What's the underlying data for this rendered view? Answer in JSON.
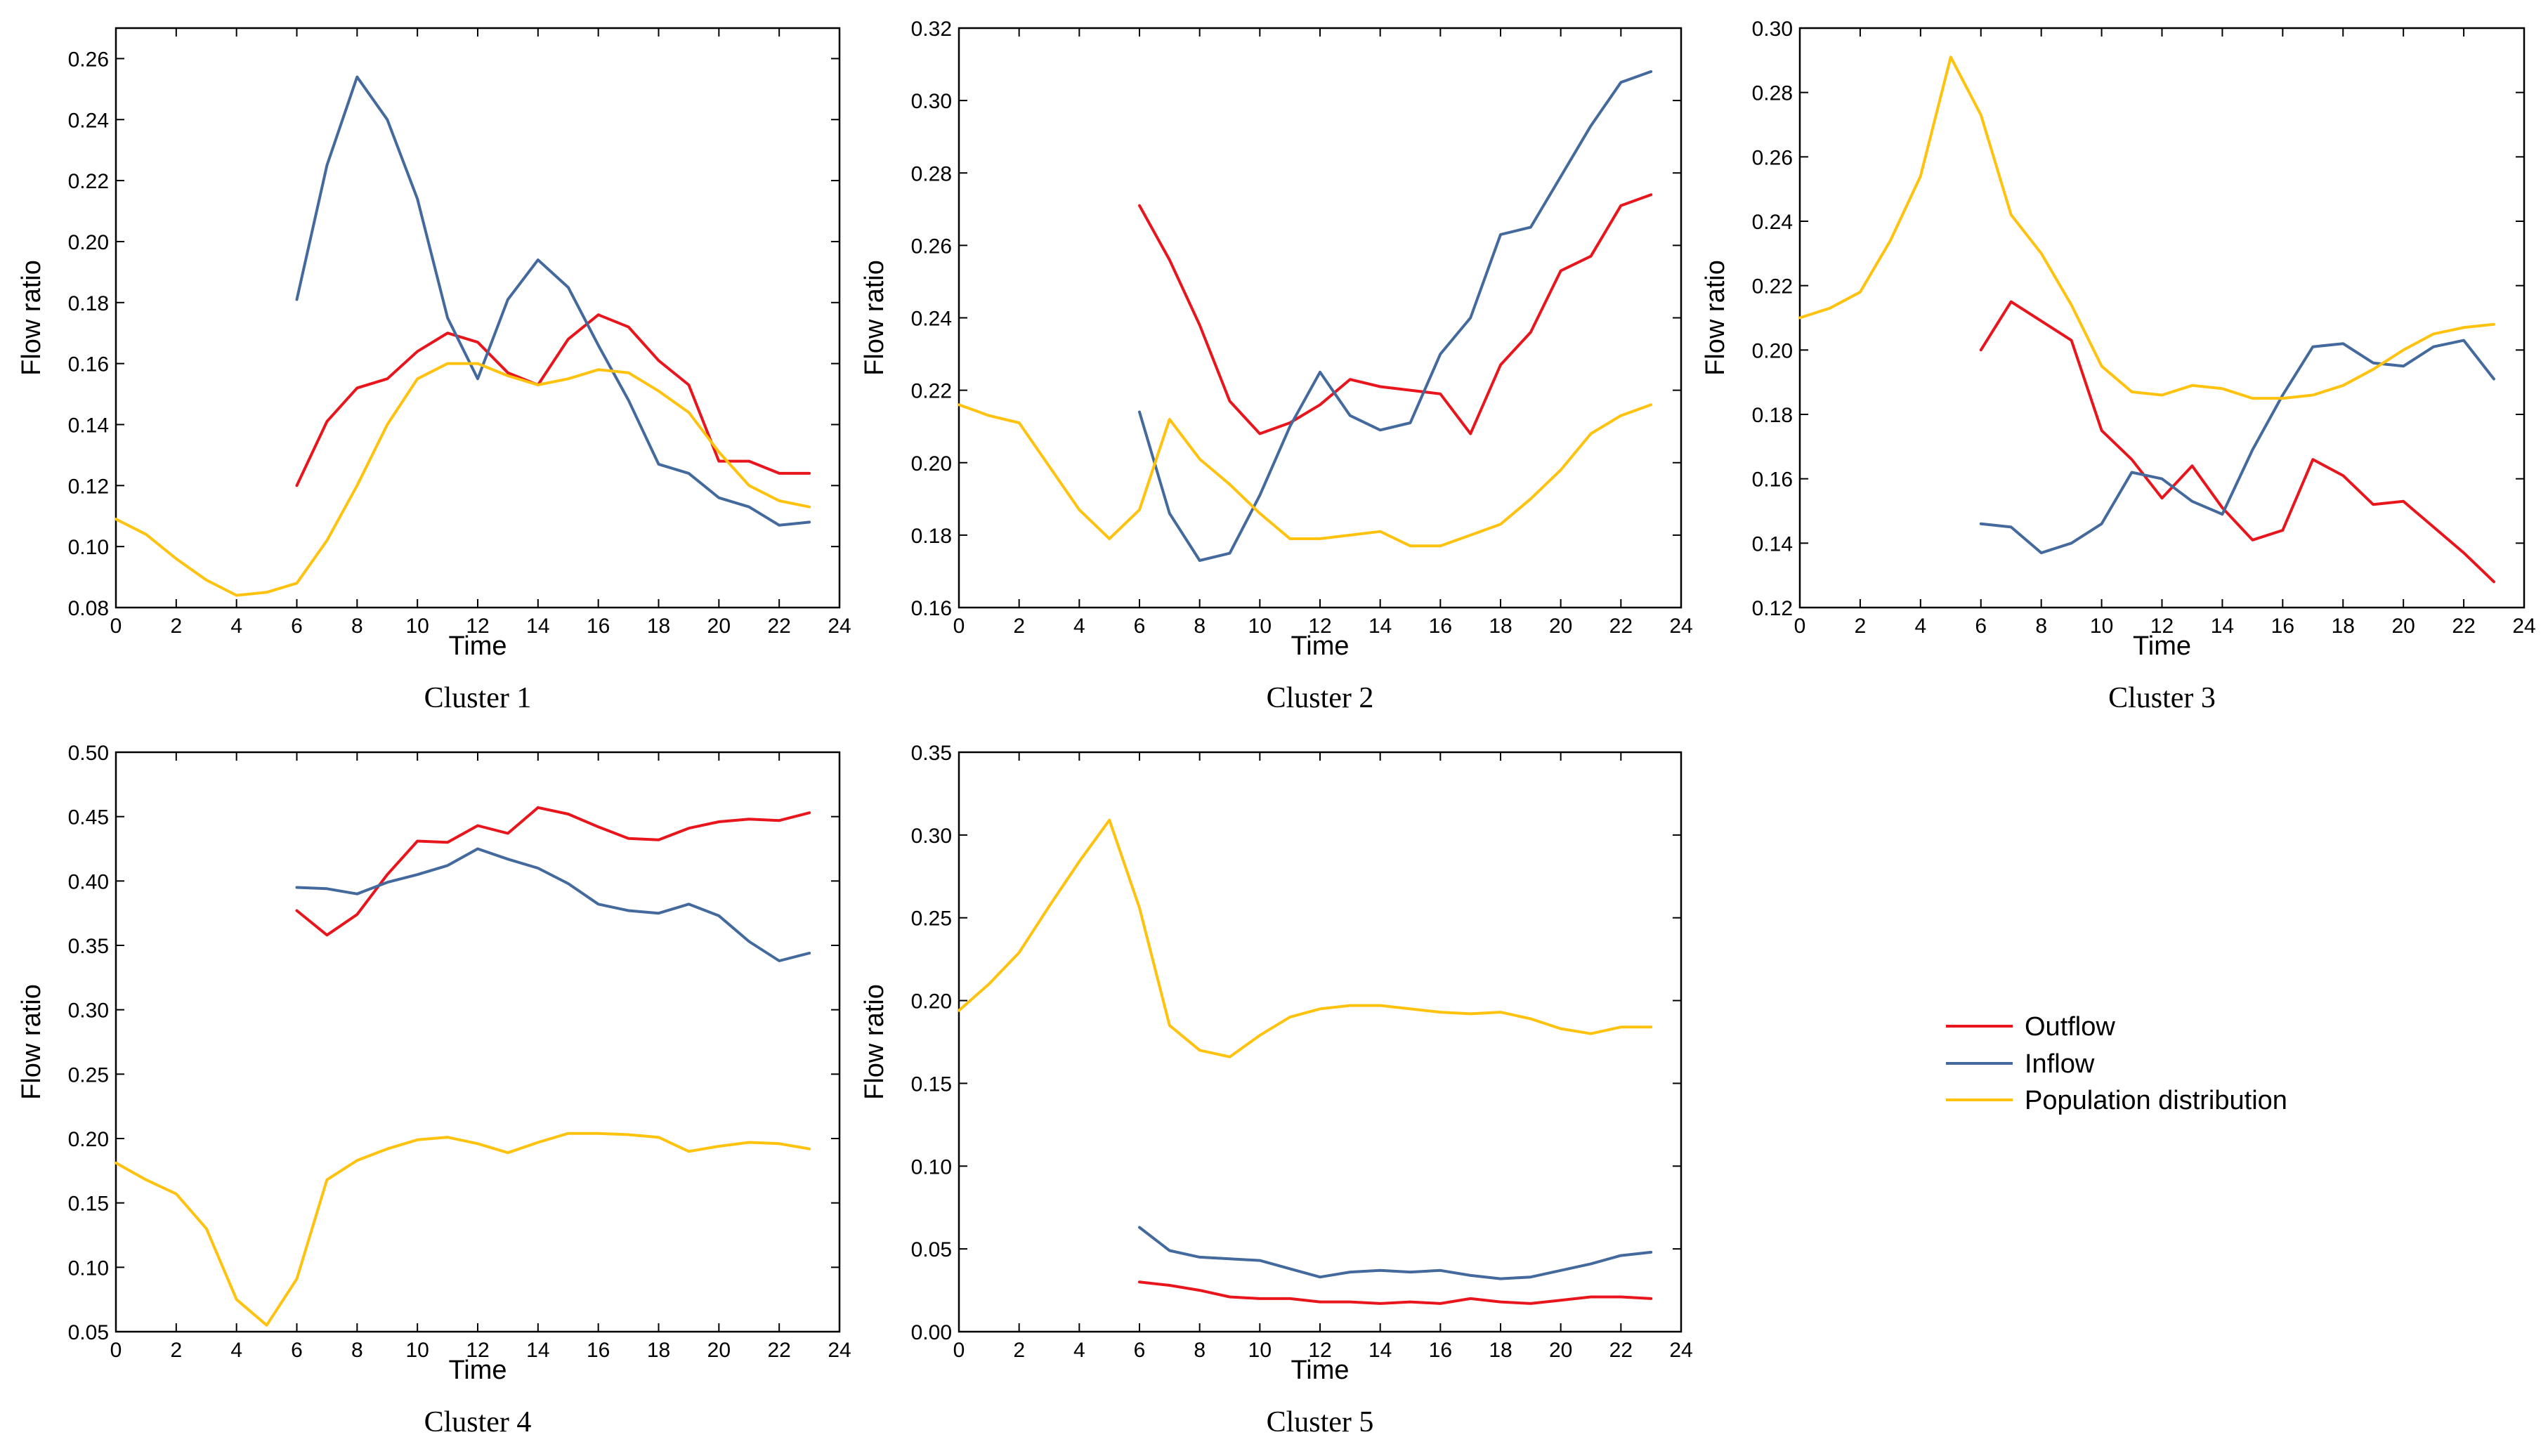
{
  "figure": {
    "legend": [
      {
        "label": "Outflow",
        "color": "#e8161c"
      },
      {
        "label": "Inflow",
        "color": "#44699d"
      },
      {
        "label": "Population distribution",
        "color": "#ffc20e"
      }
    ]
  },
  "chart_data": [
    {
      "type": "line",
      "title": "Cluster 1",
      "xlabel": "Time",
      "ylabel": "Flow ratio",
      "xlim": [
        0,
        24
      ],
      "ylim": [
        0.08,
        0.27
      ],
      "xticks": [
        0,
        2,
        4,
        6,
        8,
        10,
        12,
        14,
        16,
        18,
        20,
        22,
        24
      ],
      "yticks": [
        0.08,
        0.1,
        0.12,
        0.14,
        0.16,
        0.18,
        0.2,
        0.22,
        0.24,
        0.26
      ],
      "yfmt": 2,
      "series": [
        {
          "name": "Outflow",
          "x": [
            6,
            7,
            8,
            9,
            10,
            11,
            12,
            13,
            14,
            15,
            16,
            17,
            18,
            19,
            20,
            21,
            22,
            23
          ],
          "values": [
            0.12,
            0.141,
            0.152,
            0.155,
            0.164,
            0.17,
            0.167,
            0.157,
            0.153,
            0.168,
            0.176,
            0.172,
            0.161,
            0.153,
            0.128,
            0.128,
            0.124,
            0.124
          ]
        },
        {
          "name": "Inflow",
          "x": [
            6,
            7,
            8,
            9,
            10,
            11,
            12,
            13,
            14,
            15,
            16,
            17,
            18,
            19,
            20,
            21,
            22,
            23
          ],
          "values": [
            0.181,
            0.225,
            0.254,
            0.24,
            0.214,
            0.175,
            0.155,
            0.181,
            0.194,
            0.185,
            0.166,
            0.148,
            0.127,
            0.124,
            0.116,
            0.113,
            0.107,
            0.108
          ]
        },
        {
          "name": "Population distribution",
          "x": [
            0,
            1,
            2,
            3,
            4,
            5,
            6,
            7,
            8,
            9,
            10,
            11,
            12,
            13,
            14,
            15,
            16,
            17,
            18,
            19,
            20,
            21,
            22,
            23
          ],
          "values": [
            0.109,
            0.104,
            0.096,
            0.089,
            0.084,
            0.085,
            0.088,
            0.102,
            0.12,
            0.14,
            0.155,
            0.16,
            0.16,
            0.156,
            0.153,
            0.155,
            0.158,
            0.157,
            0.151,
            0.144,
            0.131,
            0.12,
            0.115,
            0.113
          ]
        }
      ]
    },
    {
      "type": "line",
      "title": "Cluster 2",
      "xlabel": "Time",
      "ylabel": "Flow ratio",
      "xlim": [
        0,
        24
      ],
      "ylim": [
        0.16,
        0.32
      ],
      "xticks": [
        0,
        2,
        4,
        6,
        8,
        10,
        12,
        14,
        16,
        18,
        20,
        22,
        24
      ],
      "yticks": [
        0.16,
        0.18,
        0.2,
        0.22,
        0.24,
        0.26,
        0.28,
        0.3,
        0.32
      ],
      "yfmt": 2,
      "series": [
        {
          "name": "Outflow",
          "x": [
            6,
            7,
            8,
            9,
            10,
            11,
            12,
            13,
            14,
            15,
            16,
            17,
            18,
            19,
            20,
            21,
            22,
            23
          ],
          "values": [
            0.271,
            0.256,
            0.238,
            0.217,
            0.208,
            0.211,
            0.216,
            0.223,
            0.221,
            0.22,
            0.219,
            0.208,
            0.227,
            0.236,
            0.253,
            0.257,
            0.271,
            0.274
          ]
        },
        {
          "name": "Inflow",
          "x": [
            6,
            7,
            8,
            9,
            10,
            11,
            12,
            13,
            14,
            15,
            16,
            17,
            18,
            19,
            20,
            21,
            22,
            23
          ],
          "values": [
            0.214,
            0.186,
            0.173,
            0.175,
            0.191,
            0.21,
            0.225,
            0.213,
            0.209,
            0.211,
            0.23,
            0.24,
            0.263,
            0.265,
            0.279,
            0.293,
            0.305,
            0.308
          ]
        },
        {
          "name": "Population distribution",
          "x": [
            0,
            1,
            2,
            3,
            4,
            5,
            6,
            7,
            8,
            9,
            10,
            11,
            12,
            13,
            14,
            15,
            16,
            17,
            18,
            19,
            20,
            21,
            22,
            23
          ],
          "values": [
            0.216,
            0.213,
            0.211,
            0.199,
            0.187,
            0.179,
            0.187,
            0.212,
            0.201,
            0.194,
            0.186,
            0.179,
            0.179,
            0.18,
            0.181,
            0.177,
            0.177,
            0.18,
            0.183,
            0.19,
            0.198,
            0.208,
            0.213,
            0.216
          ]
        }
      ]
    },
    {
      "type": "line",
      "title": "Cluster 3",
      "xlabel": "Time",
      "ylabel": "Flow ratio",
      "xlim": [
        0,
        24
      ],
      "ylim": [
        0.12,
        0.3
      ],
      "xticks": [
        0,
        2,
        4,
        6,
        8,
        10,
        12,
        14,
        16,
        18,
        20,
        22,
        24
      ],
      "yticks": [
        0.12,
        0.14,
        0.16,
        0.18,
        0.2,
        0.22,
        0.24,
        0.26,
        0.28,
        0.3
      ],
      "yfmt": 2,
      "series": [
        {
          "name": "Outflow",
          "x": [
            6,
            7,
            8,
            9,
            10,
            11,
            12,
            13,
            14,
            15,
            16,
            17,
            18,
            19,
            20,
            21,
            22,
            23
          ],
          "values": [
            0.2,
            0.215,
            0.209,
            0.203,
            0.175,
            0.166,
            0.154,
            0.164,
            0.151,
            0.141,
            0.144,
            0.166,
            0.161,
            0.152,
            0.153,
            0.145,
            0.137,
            0.128
          ]
        },
        {
          "name": "Inflow",
          "x": [
            6,
            7,
            8,
            9,
            10,
            11,
            12,
            13,
            14,
            15,
            16,
            17,
            18,
            19,
            20,
            21,
            22,
            23
          ],
          "values": [
            0.146,
            0.145,
            0.137,
            0.14,
            0.146,
            0.162,
            0.16,
            0.153,
            0.149,
            0.169,
            0.186,
            0.201,
            0.202,
            0.196,
            0.195,
            0.201,
            0.203,
            0.191
          ]
        },
        {
          "name": "Population distribution",
          "x": [
            0,
            1,
            2,
            3,
            4,
            5,
            6,
            7,
            8,
            9,
            10,
            11,
            12,
            13,
            14,
            15,
            16,
            17,
            18,
            19,
            20,
            21,
            22,
            23
          ],
          "values": [
            0.21,
            0.213,
            0.218,
            0.234,
            0.254,
            0.291,
            0.273,
            0.242,
            0.23,
            0.214,
            0.195,
            0.187,
            0.186,
            0.189,
            0.188,
            0.185,
            0.185,
            0.186,
            0.189,
            0.194,
            0.2,
            0.205,
            0.207,
            0.208
          ]
        }
      ]
    },
    {
      "type": "line",
      "title": "Cluster 4",
      "xlabel": "Time",
      "ylabel": "Flow ratio",
      "xlim": [
        0,
        24
      ],
      "ylim": [
        0.05,
        0.5
      ],
      "xticks": [
        0,
        2,
        4,
        6,
        8,
        10,
        12,
        14,
        16,
        18,
        20,
        22,
        24
      ],
      "yticks": [
        0.05,
        0.1,
        0.15,
        0.2,
        0.25,
        0.3,
        0.35,
        0.4,
        0.45,
        0.5
      ],
      "yfmt": 2,
      "series": [
        {
          "name": "Outflow",
          "x": [
            6,
            7,
            8,
            9,
            10,
            11,
            12,
            13,
            14,
            15,
            16,
            17,
            18,
            19,
            20,
            21,
            22,
            23
          ],
          "values": [
            0.377,
            0.358,
            0.374,
            0.405,
            0.431,
            0.43,
            0.443,
            0.437,
            0.457,
            0.452,
            0.442,
            0.433,
            0.432,
            0.441,
            0.446,
            0.448,
            0.447,
            0.453
          ]
        },
        {
          "name": "Inflow",
          "x": [
            6,
            7,
            8,
            9,
            10,
            11,
            12,
            13,
            14,
            15,
            16,
            17,
            18,
            19,
            20,
            21,
            22,
            23
          ],
          "values": [
            0.395,
            0.394,
            0.39,
            0.399,
            0.405,
            0.412,
            0.425,
            0.417,
            0.41,
            0.398,
            0.382,
            0.377,
            0.375,
            0.382,
            0.373,
            0.353,
            0.338,
            0.344
          ]
        },
        {
          "name": "Population distribution",
          "x": [
            0,
            1,
            2,
            3,
            4,
            5,
            6,
            7,
            8,
            9,
            10,
            11,
            12,
            13,
            14,
            15,
            16,
            17,
            18,
            19,
            20,
            21,
            22,
            23
          ],
          "values": [
            0.181,
            0.168,
            0.157,
            0.13,
            0.075,
            0.055,
            0.091,
            0.168,
            0.183,
            0.192,
            0.199,
            0.201,
            0.196,
            0.189,
            0.197,
            0.204,
            0.204,
            0.203,
            0.201,
            0.19,
            0.194,
            0.197,
            0.196,
            0.192
          ]
        }
      ]
    },
    {
      "type": "line",
      "title": "Cluster 5",
      "xlabel": "Time",
      "ylabel": "Flow ratio",
      "xlim": [
        0,
        24
      ],
      "ylim": [
        0.0,
        0.35
      ],
      "xticks": [
        0,
        2,
        4,
        6,
        8,
        10,
        12,
        14,
        16,
        18,
        20,
        22,
        24
      ],
      "yticks": [
        0.0,
        0.05,
        0.1,
        0.15,
        0.2,
        0.25,
        0.3,
        0.35
      ],
      "yfmt": 2,
      "series": [
        {
          "name": "Outflow",
          "x": [
            6,
            7,
            8,
            9,
            10,
            11,
            12,
            13,
            14,
            15,
            16,
            17,
            18,
            19,
            20,
            21,
            22,
            23
          ],
          "values": [
            0.03,
            0.028,
            0.025,
            0.021,
            0.02,
            0.02,
            0.018,
            0.018,
            0.017,
            0.018,
            0.017,
            0.02,
            0.018,
            0.017,
            0.019,
            0.021,
            0.021,
            0.02
          ]
        },
        {
          "name": "Inflow",
          "x": [
            6,
            7,
            8,
            9,
            10,
            11,
            12,
            13,
            14,
            15,
            16,
            17,
            18,
            19,
            20,
            21,
            22,
            23
          ],
          "values": [
            0.063,
            0.049,
            0.045,
            0.044,
            0.043,
            0.038,
            0.033,
            0.036,
            0.037,
            0.036,
            0.037,
            0.034,
            0.032,
            0.033,
            0.037,
            0.041,
            0.046,
            0.048
          ]
        },
        {
          "name": "Population distribution",
          "x": [
            0,
            1,
            2,
            3,
            4,
            5,
            6,
            7,
            8,
            9,
            10,
            11,
            12,
            13,
            14,
            15,
            16,
            17,
            18,
            19,
            20,
            21,
            22,
            23
          ],
          "values": [
            0.194,
            0.21,
            0.229,
            0.257,
            0.284,
            0.309,
            0.256,
            0.185,
            0.17,
            0.166,
            0.179,
            0.19,
            0.195,
            0.197,
            0.197,
            0.195,
            0.193,
            0.192,
            0.193,
            0.189,
            0.183,
            0.18,
            0.184,
            0.184
          ]
        }
      ]
    }
  ]
}
